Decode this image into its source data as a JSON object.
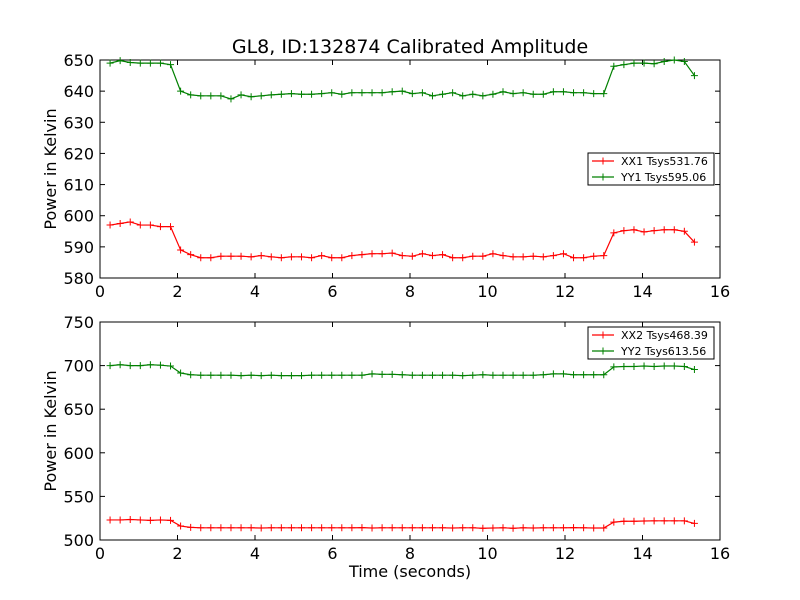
{
  "figure": {
    "title": "GL8, ID:132874 Calibrated Amplitude"
  },
  "chart_data": [
    {
      "type": "line",
      "title": "GL8, ID:132874 Calibrated Amplitude",
      "xlabel": "",
      "ylabel": "Power in Kelvin",
      "xlim": [
        0,
        16
      ],
      "ylim": [
        580,
        650
      ],
      "xticks": [
        0,
        2,
        4,
        6,
        8,
        10,
        12,
        14,
        16
      ],
      "yticks": [
        580,
        590,
        600,
        610,
        620,
        630,
        640,
        650
      ],
      "grid": false,
      "legend_position": "center-right",
      "marker": "plus",
      "x": [
        0.26,
        0.52,
        0.78,
        1.04,
        1.3,
        1.56,
        1.82,
        2.08,
        2.34,
        2.6,
        2.86,
        3.12,
        3.38,
        3.64,
        3.9,
        4.16,
        4.42,
        4.68,
        4.94,
        5.2,
        5.46,
        5.72,
        5.98,
        6.24,
        6.5,
        6.76,
        7.02,
        7.28,
        7.54,
        7.8,
        8.06,
        8.32,
        8.58,
        8.84,
        9.1,
        9.36,
        9.62,
        9.88,
        10.14,
        10.4,
        10.66,
        10.92,
        11.18,
        11.44,
        11.7,
        11.96,
        12.22,
        12.48,
        12.74,
        13.0,
        13.26,
        13.52,
        13.78,
        14.04,
        14.3,
        14.56,
        14.82,
        15.08,
        15.34
      ],
      "series": [
        {
          "name": "XX1 Tsys531.76",
          "color": "#ff0000",
          "values": [
            597.0,
            597.5,
            598.0,
            597.0,
            597.0,
            596.5,
            596.5,
            589.0,
            587.5,
            586.5,
            586.5,
            587.0,
            587.0,
            587.0,
            586.8,
            587.2,
            586.8,
            586.5,
            586.8,
            586.8,
            586.5,
            587.2,
            586.5,
            586.5,
            587.2,
            587.5,
            587.8,
            587.8,
            588.0,
            587.2,
            587.0,
            587.8,
            587.2,
            587.5,
            586.5,
            586.5,
            587.0,
            587.0,
            587.8,
            587.2,
            586.8,
            586.8,
            587.0,
            586.8,
            587.2,
            587.8,
            586.5,
            586.5,
            587.0,
            587.2,
            594.5,
            595.2,
            595.5,
            594.8,
            595.2,
            595.5,
            595.5,
            595.0,
            591.5
          ]
        },
        {
          "name": "YY1 Tsys595.06",
          "color": "#008000",
          "values": [
            649.0,
            649.8,
            649.2,
            649.0,
            649.0,
            649.0,
            648.5,
            640.0,
            638.8,
            638.5,
            638.5,
            638.5,
            637.5,
            638.8,
            638.2,
            638.5,
            638.8,
            639.0,
            639.2,
            639.0,
            639.0,
            639.2,
            639.5,
            639.0,
            639.5,
            639.5,
            639.5,
            639.5,
            639.8,
            640.0,
            639.2,
            639.5,
            638.5,
            639.0,
            639.5,
            638.5,
            639.0,
            638.5,
            639.0,
            639.8,
            639.2,
            639.5,
            639.0,
            639.0,
            639.8,
            639.8,
            639.5,
            639.5,
            639.2,
            639.2,
            648.0,
            648.5,
            649.0,
            649.0,
            648.8,
            649.5,
            650.0,
            649.5,
            645.0
          ]
        }
      ]
    },
    {
      "type": "line",
      "title": "",
      "xlabel": "Time (seconds)",
      "ylabel": "Power in Kelvin",
      "xlim": [
        0,
        16
      ],
      "ylim": [
        500,
        750
      ],
      "xticks": [
        0,
        2,
        4,
        6,
        8,
        10,
        12,
        14,
        16
      ],
      "yticks": [
        500,
        550,
        600,
        650,
        700,
        750
      ],
      "grid": false,
      "legend_position": "top-right",
      "marker": "plus",
      "x": [
        0.26,
        0.52,
        0.78,
        1.04,
        1.3,
        1.56,
        1.82,
        2.08,
        2.34,
        2.6,
        2.86,
        3.12,
        3.38,
        3.64,
        3.9,
        4.16,
        4.42,
        4.68,
        4.94,
        5.2,
        5.46,
        5.72,
        5.98,
        6.24,
        6.5,
        6.76,
        7.02,
        7.28,
        7.54,
        7.8,
        8.06,
        8.32,
        8.58,
        8.84,
        9.1,
        9.36,
        9.62,
        9.88,
        10.14,
        10.4,
        10.66,
        10.92,
        11.18,
        11.44,
        11.7,
        11.96,
        12.22,
        12.48,
        12.74,
        13.0,
        13.26,
        13.52,
        13.78,
        14.04,
        14.3,
        14.56,
        14.82,
        15.08,
        15.34
      ],
      "series": [
        {
          "name": "XX2 Tsys468.39",
          "color": "#ff0000",
          "values": [
            523.0,
            523.0,
            523.5,
            523.0,
            522.5,
            523.0,
            522.5,
            516.0,
            514.5,
            514.0,
            514.0,
            514.0,
            514.0,
            514.0,
            514.0,
            513.8,
            514.0,
            514.0,
            514.0,
            514.0,
            514.0,
            514.0,
            514.0,
            514.0,
            514.0,
            514.2,
            513.8,
            514.0,
            514.0,
            514.0,
            514.0,
            514.0,
            514.0,
            514.0,
            513.8,
            514.0,
            514.0,
            513.5,
            513.8,
            514.0,
            513.5,
            514.0,
            513.8,
            514.0,
            514.0,
            514.0,
            514.2,
            514.0,
            513.8,
            513.8,
            520.5,
            521.5,
            521.5,
            521.8,
            522.0,
            522.0,
            522.0,
            522.0,
            519.0
          ]
        },
        {
          "name": "YY2 Tsys613.56",
          "color": "#008000",
          "values": [
            700.0,
            701.0,
            700.0,
            700.0,
            701.0,
            700.5,
            699.5,
            691.5,
            689.5,
            689.0,
            689.0,
            689.0,
            689.0,
            688.5,
            689.0,
            688.5,
            689.0,
            688.5,
            688.5,
            688.5,
            689.0,
            689.0,
            689.0,
            689.0,
            689.0,
            689.0,
            690.5,
            690.0,
            690.0,
            689.5,
            689.0,
            689.0,
            689.0,
            689.0,
            689.0,
            688.5,
            689.0,
            689.5,
            689.0,
            689.0,
            689.0,
            689.0,
            689.0,
            689.5,
            690.5,
            690.5,
            689.5,
            689.5,
            689.5,
            689.5,
            698.5,
            699.0,
            699.0,
            699.5,
            699.0,
            699.5,
            699.5,
            699.0,
            695.5
          ]
        }
      ]
    }
  ]
}
